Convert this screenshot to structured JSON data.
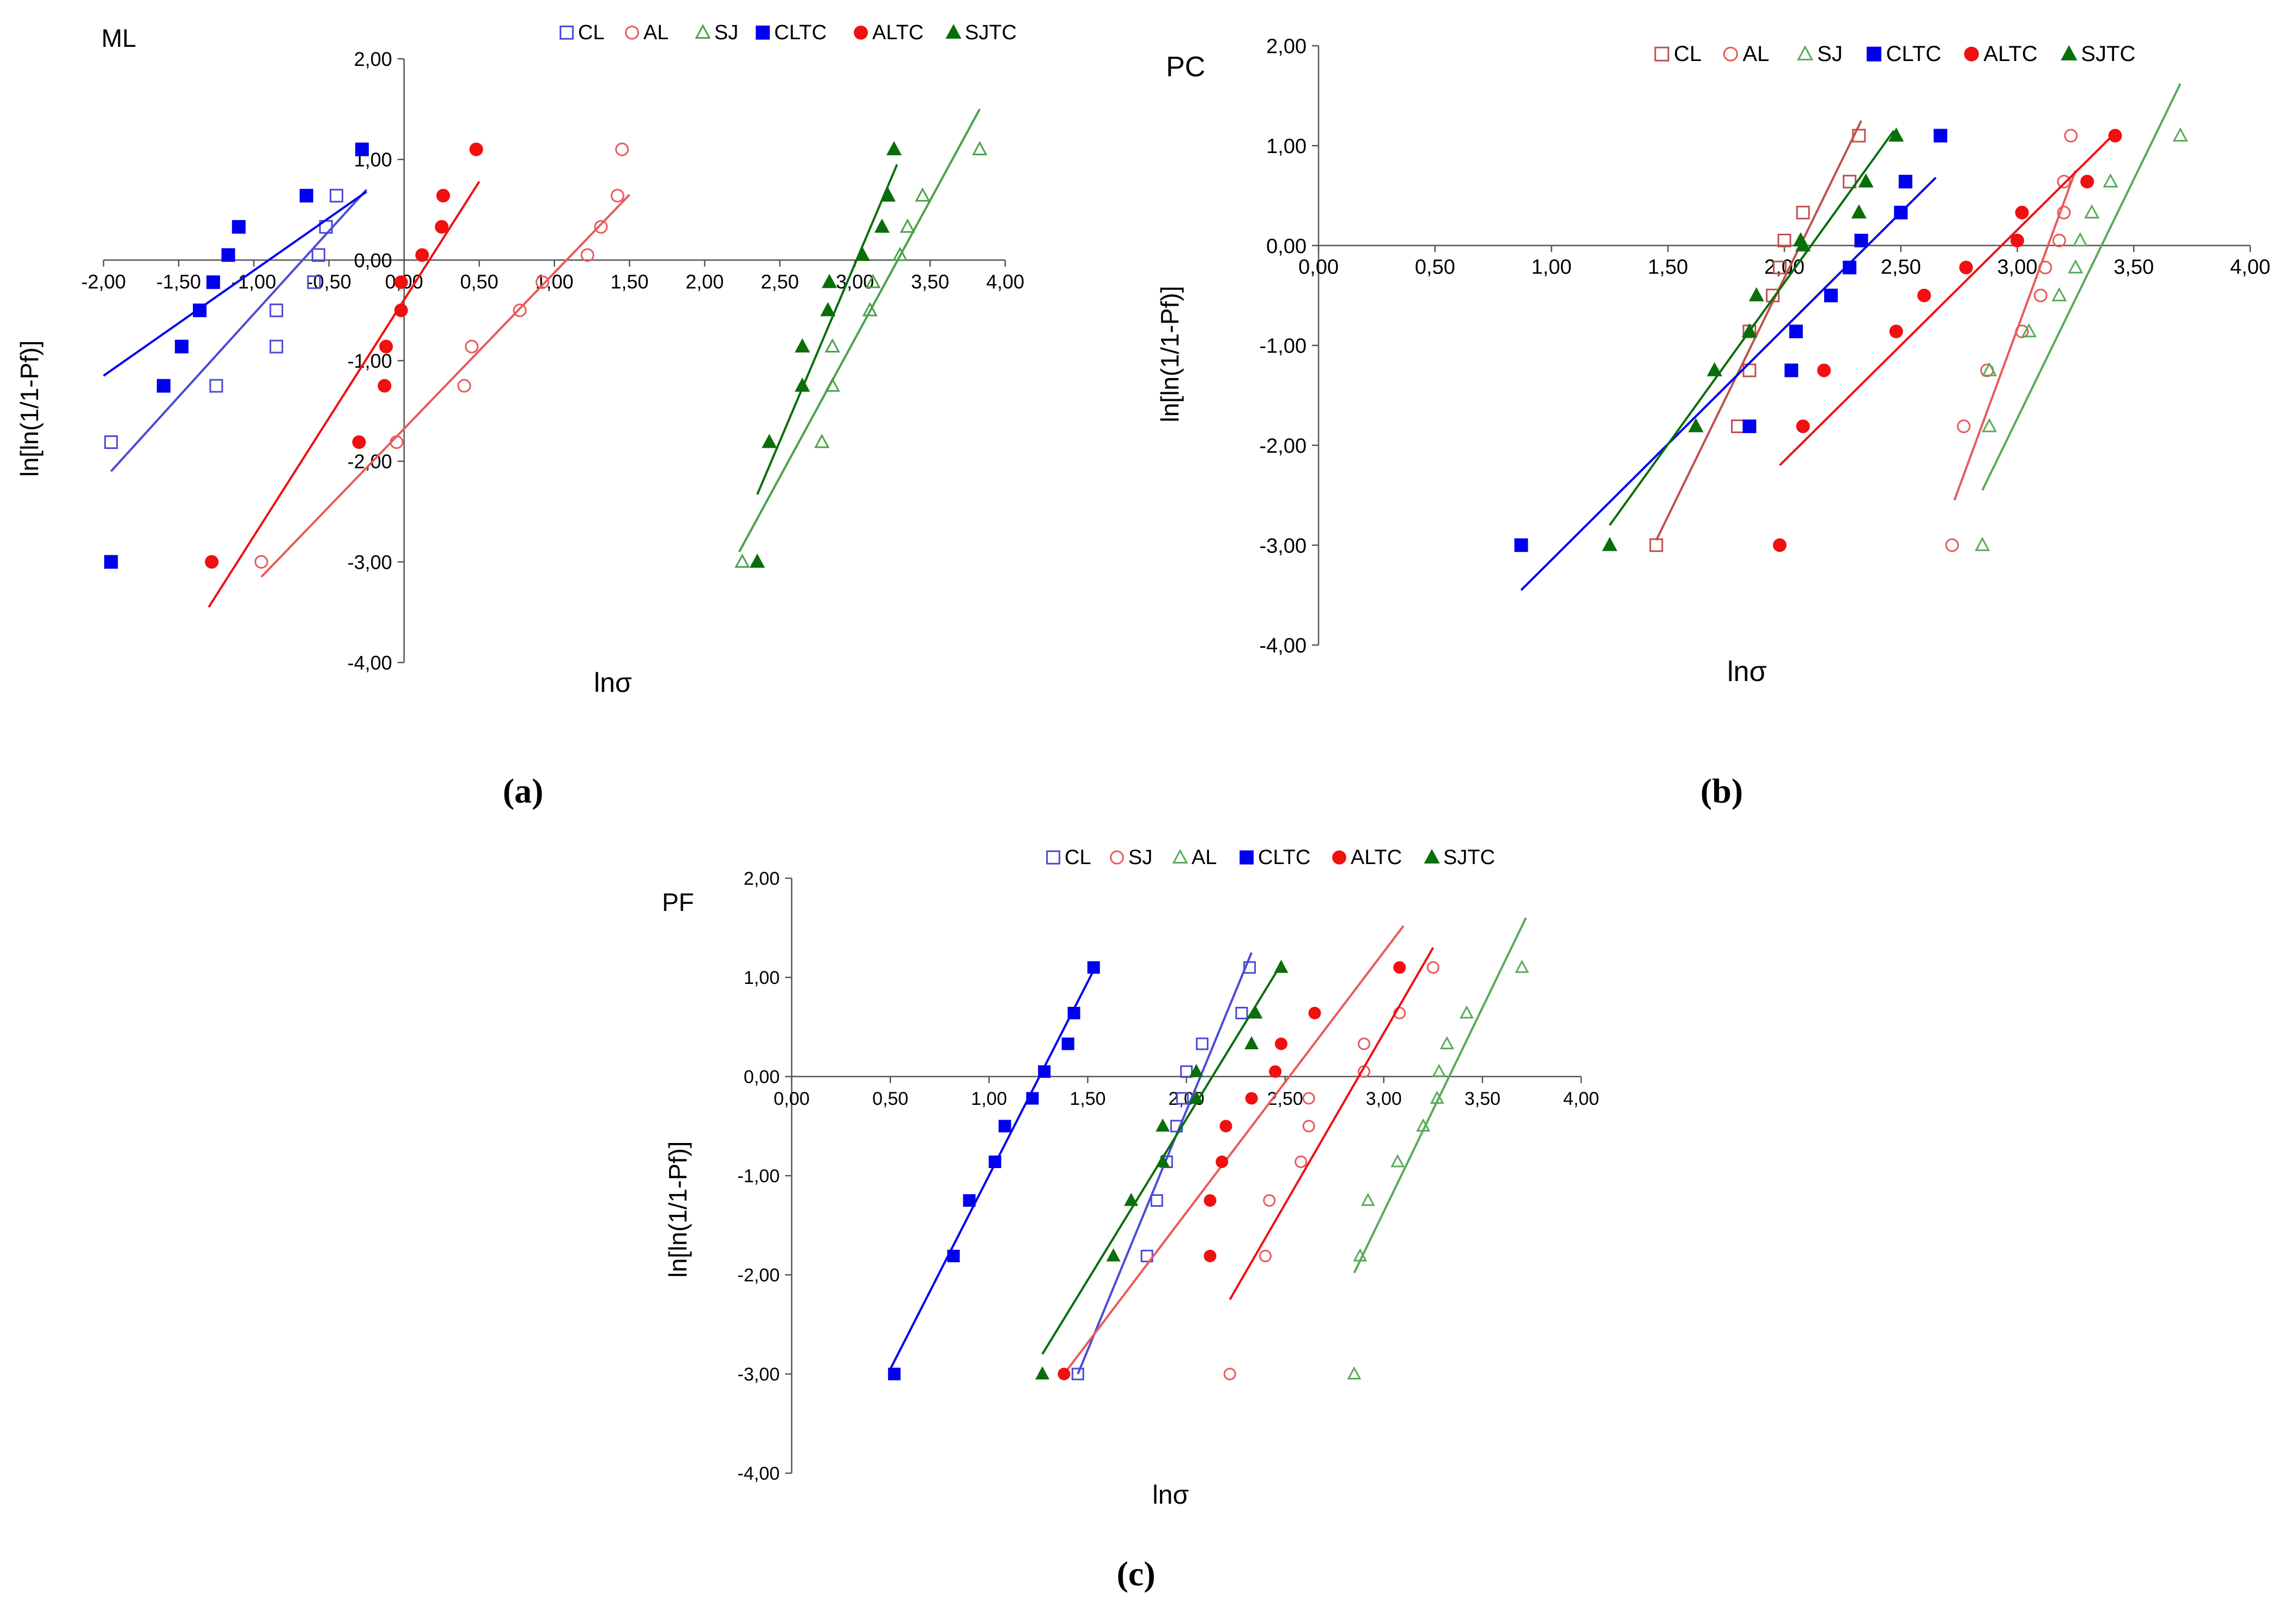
{
  "captions": [
    "(a)",
    "(b)",
    "(c)"
  ],
  "chart_data": [
    {
      "type": "scatter",
      "panel": "ML",
      "xlabel": "lnσ",
      "ylabel": "ln[ln(1/1-Pf)]",
      "xlim": [
        -2.0,
        4.0
      ],
      "ylim": [
        -4.0,
        2.0
      ],
      "xticks": [
        "-2,00",
        "-1,50",
        "-1,00",
        "-0,50",
        "0,00",
        "0,50",
        "1,00",
        "1,50",
        "2,00",
        "2,50",
        "3,00",
        "3,50",
        "4,00"
      ],
      "yticks": [
        "2,00",
        "1,00",
        "0,00",
        "-1,00",
        "-2,00",
        "-3,00",
        "-4,00"
      ],
      "legend": [
        "CL",
        "AL",
        "SJ",
        "CLTC",
        "ALTC",
        "SJTC"
      ],
      "series": [
        {
          "name": "CL",
          "color": "#4a4ad8",
          "marker": "square-open",
          "x": [
            -1.95,
            -1.95,
            -1.25,
            -0.85,
            -0.85,
            -0.6,
            -0.57,
            -0.52,
            -0.45
          ],
          "y": [
            -3.0,
            -1.81,
            -1.25,
            -0.86,
            -0.5,
            -0.22,
            0.05,
            0.33,
            0.64
          ],
          "fit": [
            [
              -1.95,
              -2.1
            ],
            [
              -0.25,
              0.7
            ]
          ]
        },
        {
          "name": "AL",
          "color": "#e85a5a",
          "marker": "circle-open",
          "x": [
            -0.95,
            -0.05,
            0.4,
            0.45,
            0.77,
            0.92,
            1.22,
            1.31,
            1.42,
            1.45
          ],
          "y": [
            -3.0,
            -1.81,
            -1.25,
            -0.86,
            -0.5,
            -0.22,
            0.05,
            0.33,
            0.64,
            1.1
          ],
          "fit": [
            [
              -0.95,
              -3.15
            ],
            [
              1.5,
              0.65
            ]
          ]
        },
        {
          "name": "SJ",
          "color": "#4aa14a",
          "marker": "triangle-open",
          "x": [
            2.25,
            2.78,
            2.85,
            2.85,
            3.1,
            3.12,
            3.3,
            3.35,
            3.45,
            3.83
          ],
          "y": [
            -3.0,
            -1.81,
            -1.25,
            -0.86,
            -0.5,
            -0.22,
            0.05,
            0.33,
            0.64,
            1.1
          ],
          "fit": [
            [
              2.23,
              -2.9
            ],
            [
              3.83,
              1.5
            ]
          ]
        },
        {
          "name": "CLTC",
          "color": "#0000f0",
          "marker": "square",
          "x": [
            -1.95,
            -1.6,
            -1.48,
            -1.36,
            -1.27,
            -1.17,
            -1.1,
            -0.65,
            -0.28
          ],
          "y": [
            -3.0,
            -1.25,
            -0.86,
            -0.5,
            -0.22,
            0.05,
            0.33,
            0.64,
            1.1
          ],
          "fit": [
            [
              -2.0,
              -1.15
            ],
            [
              -0.25,
              0.68
            ]
          ]
        },
        {
          "name": "ALTC",
          "color": "#f01010",
          "marker": "circle",
          "x": [
            -1.28,
            -0.3,
            -0.13,
            -0.12,
            -0.02,
            -0.02,
            0.12,
            0.25,
            0.26,
            0.48
          ],
          "y": [
            -3.0,
            -1.81,
            -1.25,
            -0.86,
            -0.5,
            -0.22,
            0.05,
            0.33,
            0.64,
            1.1
          ],
          "fit": [
            [
              -1.3,
              -3.45
            ],
            [
              0.5,
              0.78
            ]
          ]
        },
        {
          "name": "SJTC",
          "color": "#0a6e0a",
          "marker": "triangle",
          "x": [
            2.35,
            2.43,
            2.65,
            2.65,
            2.82,
            2.83,
            3.05,
            3.18,
            3.22,
            3.26
          ],
          "y": [
            -3.0,
            -1.81,
            -1.25,
            -0.86,
            -0.5,
            -0.22,
            0.05,
            0.33,
            0.64,
            1.1
          ],
          "fit": [
            [
              2.35,
              -2.33
            ],
            [
              3.28,
              0.95
            ]
          ]
        }
      ]
    },
    {
      "type": "scatter",
      "panel": "PC",
      "xlabel": "lnσ",
      "ylabel": "ln[ln(1/1-Pf)]",
      "xlim": [
        0.0,
        4.0
      ],
      "ylim": [
        -4.0,
        2.0
      ],
      "xticks": [
        "0,00",
        "0,50",
        "1,00",
        "1,50",
        "2,00",
        "2,50",
        "3,00",
        "3,50",
        "4,00"
      ],
      "yticks": [
        "2,00",
        "1,00",
        "0,00",
        "-1,00",
        "-2,00",
        "-3,00",
        "-4,00"
      ],
      "legend": [
        "CL",
        "AL",
        "SJ",
        "CLTC",
        "ALTC",
        "SJTC"
      ],
      "series": [
        {
          "name": "CL",
          "color": "#c0504d",
          "marker": "square-open",
          "x": [
            1.45,
            1.8,
            1.85,
            1.85,
            1.95,
            1.98,
            2.0,
            2.08,
            2.28,
            2.32
          ],
          "y": [
            -3.0,
            -1.81,
            -1.25,
            -0.86,
            -0.5,
            -0.22,
            0.05,
            0.33,
            0.64,
            1.1
          ],
          "fit": [
            [
              1.45,
              -2.95
            ],
            [
              2.33,
              1.25
            ]
          ]
        },
        {
          "name": "AL",
          "color": "#e85a5a",
          "marker": "circle-open",
          "x": [
            2.72,
            2.77,
            2.87,
            3.02,
            3.1,
            3.12,
            3.18,
            3.2,
            3.2,
            3.23
          ],
          "y": [
            -3.0,
            -1.81,
            -1.25,
            -0.86,
            -0.5,
            -0.22,
            0.05,
            0.33,
            0.64,
            1.1
          ],
          "fit": [
            [
              2.73,
              -2.55
            ],
            [
              3.25,
              0.75
            ]
          ]
        },
        {
          "name": "SJ",
          "color": "#5aaa5a",
          "marker": "triangle-open",
          "x": [
            2.85,
            2.88,
            2.88,
            3.05,
            3.18,
            3.25,
            3.27,
            3.32,
            3.4,
            3.7
          ],
          "y": [
            -3.0,
            -1.81,
            -1.25,
            -0.86,
            -0.5,
            -0.22,
            0.05,
            0.33,
            0.64,
            1.1
          ],
          "fit": [
            [
              2.85,
              -2.45
            ],
            [
              3.7,
              1.62
            ]
          ]
        },
        {
          "name": "CLTC",
          "color": "#0000f0",
          "marker": "square",
          "x": [
            0.87,
            1.85,
            2.03,
            2.05,
            2.2,
            2.28,
            2.33,
            2.5,
            2.52,
            2.67
          ],
          "y": [
            -3.0,
            -1.81,
            -1.25,
            -0.86,
            -0.5,
            -0.22,
            0.05,
            0.33,
            0.64,
            1.1
          ],
          "fit": [
            [
              0.87,
              -3.45
            ],
            [
              2.65,
              0.68
            ]
          ]
        },
        {
          "name": "ALTC",
          "color": "#f01010",
          "marker": "circle",
          "x": [
            1.98,
            2.08,
            2.17,
            2.48,
            2.6,
            2.78,
            3.0,
            3.02,
            3.3,
            3.42
          ],
          "y": [
            -3.0,
            -1.81,
            -1.25,
            -0.86,
            -0.5,
            -0.22,
            0.05,
            0.33,
            0.64,
            1.1
          ],
          "fit": [
            [
              1.98,
              -2.2
            ],
            [
              3.43,
              1.15
            ]
          ]
        },
        {
          "name": "SJTC",
          "color": "#0a6e0a",
          "marker": "triangle",
          "x": [
            1.25,
            1.62,
            1.7,
            1.85,
            1.88,
            2.07,
            2.08,
            2.32,
            2.35,
            2.48
          ],
          "y": [
            -3.0,
            -1.81,
            -1.25,
            -0.86,
            -0.5,
            0.05,
            0.0,
            0.33,
            0.64,
            1.1
          ],
          "fit1": "",
          "fit": [
            [
              1.25,
              -2.8
            ],
            [
              2.47,
              1.15
            ]
          ]
        }
      ]
    },
    {
      "type": "scatter",
      "panel": "PF",
      "xlabel": "lnσ",
      "ylabel": "ln[ln(1/1-Pf)]",
      "xlim": [
        0.0,
        4.0
      ],
      "ylim": [
        -4.0,
        2.0
      ],
      "xticks": [
        "0,00",
        "0,50",
        "1,00",
        "1,50",
        "2,00",
        "2,50",
        "3,00",
        "3,50",
        "4,00"
      ],
      "yticks": [
        "2,00",
        "1,00",
        "0,00",
        "-1,00",
        "-2,00",
        "-3,00",
        "-4,00"
      ],
      "legend": [
        "CL",
        "SJ",
        "AL",
        "CLTC",
        "ALTC",
        "SJTC"
      ],
      "series": [
        {
          "name": "CL",
          "color": "#4a4ad8",
          "marker": "square-open",
          "x": [
            1.45,
            1.8,
            1.85,
            1.9,
            1.95,
            1.98,
            2.0,
            2.08,
            2.28,
            2.32
          ],
          "y": [
            -3.0,
            -1.81,
            -1.25,
            -0.86,
            -0.5,
            -0.22,
            0.05,
            0.33,
            0.64,
            1.1
          ],
          "fit": [
            [
              1.45,
              -3.0
            ],
            [
              2.33,
              1.25
            ]
          ]
        },
        {
          "name": "SJ",
          "color": "#e85a5a",
          "marker": "circle-open",
          "x": [
            2.22,
            2.4,
            2.42,
            2.58,
            2.62,
            2.62,
            2.9,
            2.9,
            3.08,
            3.25
          ],
          "y": [
            -3.0,
            -1.81,
            -1.25,
            -0.86,
            -0.5,
            -0.22,
            0.05,
            0.33,
            0.64,
            1.1
          ],
          "fit": [
            [
              1.38,
              -3.0
            ],
            [
              3.1,
              1.52
            ]
          ]
        },
        {
          "name": "AL",
          "color": "#5aaa5a",
          "marker": "triangle-open",
          "x": [
            2.85,
            2.88,
            2.92,
            3.07,
            3.2,
            3.27,
            3.28,
            3.32,
            3.42,
            3.7
          ],
          "y": [
            -3.0,
            -1.81,
            -1.25,
            -0.86,
            -0.5,
            -0.22,
            0.05,
            0.33,
            0.64,
            1.1
          ],
          "fit": [
            [
              2.85,
              -1.98
            ],
            [
              3.72,
              1.6
            ]
          ]
        },
        {
          "name": "CLTC",
          "color": "#0000f0",
          "marker": "square",
          "x": [
            0.52,
            0.82,
            0.9,
            1.03,
            1.08,
            1.22,
            1.28,
            1.4,
            1.43,
            1.53
          ],
          "y": [
            -3.0,
            -1.81,
            -1.25,
            -0.86,
            -0.5,
            -0.22,
            0.05,
            0.33,
            0.64,
            1.1
          ],
          "fit": [
            [
              0.5,
              -2.95
            ],
            [
              1.55,
              1.15
            ]
          ]
        },
        {
          "name": "ALTC",
          "color": "#f01010",
          "marker": "circle",
          "x": [
            1.38,
            2.12,
            2.12,
            2.18,
            2.2,
            2.33,
            2.45,
            2.48,
            2.65,
            3.08
          ],
          "y": [
            -3.0,
            -1.81,
            -1.25,
            -0.86,
            -0.5,
            -0.22,
            0.05,
            0.33,
            0.64,
            1.1
          ],
          "fit": [
            [
              2.22,
              -2.25
            ],
            [
              3.25,
              1.3
            ]
          ]
        },
        {
          "name": "SJTC",
          "color": "#0a6e0a",
          "marker": "triangle",
          "x": [
            1.27,
            1.63,
            1.72,
            1.88,
            1.88,
            2.05,
            2.05,
            2.33,
            2.35,
            2.48
          ],
          "y": [
            -3.0,
            -1.81,
            -1.25,
            -0.86,
            -0.5,
            -0.22,
            0.05,
            0.33,
            0.64,
            1.1
          ],
          "fit": [
            [
              1.27,
              -2.8
            ],
            [
              2.47,
              1.1
            ]
          ]
        }
      ]
    }
  ]
}
